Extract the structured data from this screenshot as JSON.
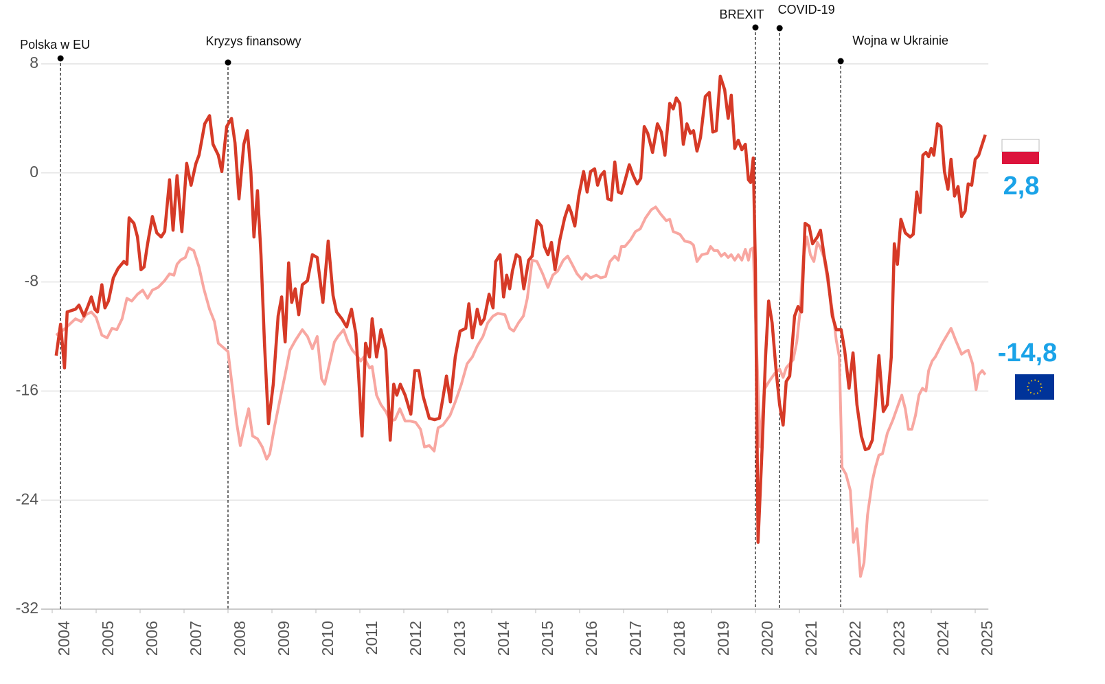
{
  "chart_data": {
    "type": "line",
    "xlim": [
      2004,
      2025.3
    ],
    "ylim": [
      -32,
      8
    ],
    "yticks": [
      8,
      0,
      -8,
      -16,
      -24,
      -32
    ],
    "xticks": [
      2004,
      2005,
      2006,
      2007,
      2008,
      2009,
      2010,
      2011,
      2012,
      2013,
      2014,
      2015,
      2016,
      2017,
      2018,
      2019,
      2020,
      2021,
      2022,
      2023,
      2024,
      2025
    ],
    "grid": true,
    "annotations": [
      {
        "x": 2004.19,
        "label": "Polska w EU"
      },
      {
        "x": 2008.0,
        "label": "Kryzys finansowy"
      },
      {
        "x": 2020.0,
        "label": "BREXIT"
      },
      {
        "x": 2020.55,
        "label": "COVID-19"
      },
      {
        "x": 2021.94,
        "label": "Wojna w Ukrainie"
      }
    ],
    "series": [
      {
        "color": "#d63a27",
        "end_label": "2,8",
        "x": [
          2004.09,
          2004.19,
          2004.28,
          2004.34,
          2004.53,
          2004.61,
          2004.72,
          2004.81,
          2004.89,
          2004.97,
          2005.03,
          2005.13,
          2005.2,
          2005.28,
          2005.39,
          2005.5,
          2005.63,
          2005.7,
          2005.75,
          2005.86,
          2005.94,
          2006.02,
          2006.09,
          2006.17,
          2006.28,
          2006.38,
          2006.48,
          2006.56,
          2006.67,
          2006.75,
          2006.84,
          2006.95,
          2007.06,
          2007.16,
          2007.27,
          2007.34,
          2007.47,
          2007.58,
          2007.66,
          2007.78,
          2007.86,
          2007.97,
          2008.08,
          2008.16,
          2008.25,
          2008.36,
          2008.44,
          2008.52,
          2008.59,
          2008.67,
          2008.75,
          2008.83,
          2008.92,
          2009.03,
          2009.14,
          2009.22,
          2009.3,
          2009.38,
          2009.45,
          2009.53,
          2009.61,
          2009.69,
          2009.81,
          2009.92,
          2010.03,
          2010.16,
          2010.28,
          2010.39,
          2010.47,
          2010.59,
          2010.7,
          2010.81,
          2010.91,
          2010.97,
          2011.05,
          2011.13,
          2011.22,
          2011.28,
          2011.38,
          2011.48,
          2011.59,
          2011.69,
          2011.77,
          2011.84,
          2011.92,
          2012.03,
          2012.16,
          2012.25,
          2012.34,
          2012.44,
          2012.58,
          2012.7,
          2012.81,
          2012.89,
          2012.97,
          2013.06,
          2013.17,
          2013.28,
          2013.41,
          2013.48,
          2013.56,
          2013.67,
          2013.75,
          2013.83,
          2013.94,
          2014.03,
          2014.09,
          2014.19,
          2014.27,
          2014.34,
          2014.41,
          2014.47,
          2014.56,
          2014.64,
          2014.73,
          2014.84,
          2014.92,
          2015.03,
          2015.13,
          2015.2,
          2015.28,
          2015.36,
          2015.44,
          2015.55,
          2015.66,
          2015.75,
          2015.81,
          2015.89,
          2015.98,
          2016.09,
          2016.17,
          2016.25,
          2016.34,
          2016.41,
          2016.48,
          2016.56,
          2016.64,
          2016.72,
          2016.8,
          2016.88,
          2016.95,
          2017.03,
          2017.13,
          2017.22,
          2017.31,
          2017.39,
          2017.47,
          2017.55,
          2017.66,
          2017.77,
          2017.86,
          2017.94,
          2018.05,
          2018.13,
          2018.2,
          2018.28,
          2018.36,
          2018.44,
          2018.52,
          2018.59,
          2018.67,
          2018.75,
          2018.86,
          2018.95,
          2019.03,
          2019.11,
          2019.2,
          2019.3,
          2019.38,
          2019.45,
          2019.53,
          2019.61,
          2019.69,
          2019.77,
          2019.84,
          2019.89,
          2019.95,
          2020.0,
          2020.06,
          2020.16,
          2020.23,
          2020.3,
          2020.38,
          2020.47,
          2020.55,
          2020.63,
          2020.7,
          2020.78,
          2020.89,
          2020.97,
          2021.05,
          2021.13,
          2021.22,
          2021.3,
          2021.41,
          2021.48,
          2021.56,
          2021.64,
          2021.75,
          2021.84,
          2021.95,
          2022.03,
          2022.13,
          2022.22,
          2022.31,
          2022.41,
          2022.5,
          2022.58,
          2022.66,
          2022.73,
          2022.81,
          2022.91,
          2023.0,
          2023.09,
          2023.16,
          2023.23,
          2023.31,
          2023.41,
          2023.52,
          2023.59,
          2023.67,
          2023.75,
          2023.81,
          2023.88,
          2023.94,
          2024.0,
          2024.06,
          2024.14,
          2024.22,
          2024.3,
          2024.38,
          2024.45,
          2024.53,
          2024.61,
          2024.69,
          2024.77,
          2024.84,
          2024.92,
          2025.0,
          2025.08,
          2025.16,
          2025.23
        ],
        "values": [
          -13.4,
          -11.1,
          -14.3,
          -10.2,
          -10.0,
          -9.7,
          -10.5,
          -9.8,
          -9.1,
          -10.0,
          -10.2,
          -8.2,
          -9.9,
          -9.4,
          -7.7,
          -7.0,
          -6.5,
          -6.7,
          -3.3,
          -3.7,
          -4.7,
          -7.1,
          -6.9,
          -5.2,
          -3.2,
          -4.4,
          -4.7,
          -4.3,
          -0.5,
          -4.2,
          -0.2,
          -4.3,
          0.7,
          -0.9,
          0.7,
          1.3,
          3.6,
          4.2,
          2.1,
          1.3,
          0.1,
          3.4,
          4.0,
          2.2,
          -1.9,
          2.1,
          3.1,
          0.1,
          -4.7,
          -1.3,
          -6.0,
          -12.5,
          -18.4,
          -15.5,
          -10.5,
          -9.1,
          -12.4,
          -6.6,
          -9.5,
          -8.5,
          -10.4,
          -8.2,
          -7.9,
          -6.0,
          -6.2,
          -9.5,
          -5.0,
          -9.0,
          -10.2,
          -10.7,
          -11.3,
          -10.0,
          -11.8,
          -14.8,
          -19.3,
          -12.5,
          -13.5,
          -10.7,
          -13.5,
          -11.5,
          -13.0,
          -19.6,
          -15.5,
          -16.3,
          -15.5,
          -16.3,
          -17.7,
          -14.5,
          -14.5,
          -16.4,
          -18.0,
          -18.1,
          -18.0,
          -16.5,
          -14.9,
          -16.8,
          -13.5,
          -11.6,
          -11.4,
          -9.6,
          -12.1,
          -10.0,
          -11.1,
          -10.7,
          -8.9,
          -9.9,
          -6.5,
          -6.0,
          -9.1,
          -7.5,
          -8.5,
          -7.2,
          -6.0,
          -6.2,
          -8.5,
          -6.4,
          -6.1,
          -3.5,
          -3.9,
          -5.4,
          -6.0,
          -5.1,
          -7.1,
          -4.9,
          -3.3,
          -2.4,
          -2.9,
          -3.9,
          -1.7,
          0.1,
          -1.4,
          0.1,
          0.3,
          -0.9,
          -0.2,
          0.1,
          -1.9,
          -2.0,
          0.8,
          -1.4,
          -1.5,
          -0.6,
          0.6,
          -0.2,
          -0.8,
          -0.4,
          3.4,
          2.9,
          1.5,
          3.6,
          3.0,
          1.3,
          5.1,
          4.7,
          5.5,
          5.1,
          2.1,
          3.6,
          2.9,
          3.1,
          1.6,
          2.6,
          5.6,
          5.9,
          3.0,
          3.1,
          7.1,
          6.1,
          4.0,
          5.7,
          1.8,
          2.4,
          1.7,
          2.1,
          -0.5,
          -0.7,
          1.1,
          -7.0,
          -27.1,
          -19.6,
          -13.5,
          -9.4,
          -11.0,
          -14.5,
          -17.0,
          -18.5,
          -15.3,
          -14.9,
          -10.5,
          -9.8,
          -10.2,
          -3.7,
          -3.9,
          -5.2,
          -4.7,
          -4.2,
          -6.0,
          -7.5,
          -10.5,
          -11.5,
          -11.5,
          -13.0,
          -15.8,
          -13.2,
          -17.0,
          -19.3,
          -20.3,
          -20.2,
          -19.6,
          -17.0,
          -13.4,
          -17.5,
          -17.0,
          -13.5,
          -5.2,
          -6.7,
          -3.4,
          -4.4,
          -4.7,
          -4.5,
          -1.4,
          -2.9,
          1.3,
          1.5,
          1.2,
          1.8,
          1.3,
          3.6,
          3.4,
          0.1,
          -1.2,
          1.0,
          -1.7,
          -1.0,
          -3.2,
          -2.8,
          -0.8,
          -0.9,
          1.0,
          1.3,
          2.1,
          2.8
        ]
      },
      {
        "color": "#f8a7a1",
        "end_label": "-14,8",
        "x": [
          2004.09,
          2004.3,
          2004.53,
          2004.66,
          2004.77,
          2004.89,
          2005.0,
          2005.13,
          2005.25,
          2005.36,
          2005.47,
          2005.59,
          2005.7,
          2005.81,
          2005.94,
          2006.06,
          2006.17,
          2006.28,
          2006.41,
          2006.56,
          2006.67,
          2006.77,
          2006.84,
          2006.92,
          2007.03,
          2007.11,
          2007.22,
          2007.34,
          2007.45,
          2007.58,
          2007.69,
          2007.78,
          2007.89,
          2008.0,
          2008.09,
          2008.2,
          2008.28,
          2008.36,
          2008.47,
          2008.56,
          2008.67,
          2008.78,
          2008.88,
          2008.95,
          2009.06,
          2009.19,
          2009.3,
          2009.41,
          2009.53,
          2009.69,
          2009.81,
          2009.92,
          2010.03,
          2010.13,
          2010.2,
          2010.31,
          2010.42,
          2010.5,
          2010.63,
          2010.73,
          2010.83,
          2010.91,
          2011.02,
          2011.09,
          2011.22,
          2011.28,
          2011.38,
          2011.48,
          2011.59,
          2011.69,
          2011.8,
          2011.91,
          2012.03,
          2012.14,
          2012.27,
          2012.38,
          2012.47,
          2012.58,
          2012.69,
          2012.78,
          2012.89,
          2013.05,
          2013.17,
          2013.31,
          2013.44,
          2013.56,
          2013.67,
          2013.8,
          2013.91,
          2014.03,
          2014.14,
          2014.3,
          2014.41,
          2014.5,
          2014.61,
          2014.72,
          2014.81,
          2014.92,
          2015.03,
          2015.16,
          2015.28,
          2015.39,
          2015.5,
          2015.63,
          2015.73,
          2015.83,
          2015.94,
          2016.05,
          2016.14,
          2016.25,
          2016.38,
          2016.48,
          2016.59,
          2016.69,
          2016.8,
          2016.88,
          2016.95,
          2017.03,
          2017.16,
          2017.27,
          2017.38,
          2017.5,
          2017.63,
          2017.73,
          2017.84,
          2017.97,
          2018.05,
          2018.13,
          2018.28,
          2018.39,
          2018.52,
          2018.59,
          2018.67,
          2018.78,
          2018.91,
          2018.98,
          2019.06,
          2019.14,
          2019.22,
          2019.3,
          2019.38,
          2019.45,
          2019.53,
          2019.61,
          2019.69,
          2019.77,
          2019.84,
          2019.89,
          2019.95,
          2020.0,
          2020.11,
          2020.2,
          2020.31,
          2020.44,
          2020.55,
          2020.63,
          2020.7,
          2020.78,
          2020.86,
          2020.94,
          2021.02,
          2021.09,
          2021.17,
          2021.25,
          2021.33,
          2021.41,
          2021.48,
          2021.56,
          2021.67,
          2021.77,
          2021.84,
          2021.91,
          2021.97,
          2022.06,
          2022.16,
          2022.23,
          2022.31,
          2022.39,
          2022.47,
          2022.55,
          2022.66,
          2022.73,
          2022.81,
          2022.89,
          2023.0,
          2023.13,
          2023.25,
          2023.33,
          2023.41,
          2023.48,
          2023.56,
          2023.64,
          2023.72,
          2023.8,
          2023.88,
          2023.94,
          2024.02,
          2024.09,
          2024.17,
          2024.25,
          2024.34,
          2024.45,
          2024.56,
          2024.69,
          2024.78,
          2024.84,
          2024.94,
          2025.02,
          2025.08,
          2025.16,
          2025.23
        ],
        "values": [
          -11.9,
          -11.4,
          -10.7,
          -10.9,
          -10.4,
          -10.2,
          -10.6,
          -11.9,
          -12.1,
          -11.4,
          -11.5,
          -10.7,
          -9.2,
          -9.4,
          -8.9,
          -8.6,
          -9.2,
          -8.6,
          -8.4,
          -7.9,
          -7.4,
          -7.5,
          -6.7,
          -6.4,
          -6.2,
          -5.5,
          -5.7,
          -6.9,
          -8.5,
          -10.0,
          -10.9,
          -12.5,
          -12.8,
          -13.1,
          -15.5,
          -18.4,
          -20.0,
          -18.8,
          -17.3,
          -19.3,
          -19.5,
          -20.1,
          -21.0,
          -20.6,
          -18.6,
          -16.5,
          -14.8,
          -13.0,
          -12.3,
          -11.5,
          -12.0,
          -12.9,
          -12.0,
          -15.1,
          -15.5,
          -14.0,
          -12.4,
          -12.0,
          -11.5,
          -12.4,
          -13.0,
          -13.3,
          -13.8,
          -13.5,
          -14.3,
          -14.2,
          -16.3,
          -17.0,
          -17.5,
          -18.2,
          -18.1,
          -17.3,
          -18.2,
          -18.2,
          -18.3,
          -18.8,
          -20.1,
          -20.0,
          -20.4,
          -18.7,
          -18.5,
          -17.8,
          -16.8,
          -15.5,
          -14.0,
          -13.5,
          -12.7,
          -12.0,
          -11.0,
          -10.5,
          -10.3,
          -10.4,
          -11.4,
          -11.6,
          -11.0,
          -10.5,
          -9.2,
          -6.4,
          -6.5,
          -7.4,
          -8.4,
          -7.5,
          -7.2,
          -6.4,
          -6.1,
          -6.7,
          -7.4,
          -7.8,
          -7.4,
          -7.7,
          -7.5,
          -7.7,
          -7.6,
          -6.5,
          -6.1,
          -6.4,
          -5.4,
          -5.4,
          -4.9,
          -4.3,
          -4.1,
          -3.3,
          -2.7,
          -2.5,
          -3.0,
          -3.5,
          -3.4,
          -4.3,
          -4.5,
          -5.0,
          -5.1,
          -5.3,
          -6.5,
          -6.0,
          -5.9,
          -5.4,
          -5.7,
          -5.7,
          -6.1,
          -5.9,
          -6.2,
          -6.0,
          -6.4,
          -6.0,
          -6.4,
          -5.6,
          -6.4,
          -5.6,
          -5.5,
          -10.5,
          -20.1,
          -15.9,
          -15.3,
          -14.7,
          -14.4,
          -15.0,
          -14.3,
          -14.0,
          -13.7,
          -12.4,
          -10.0,
          -6.2,
          -4.7,
          -6.0,
          -6.5,
          -5.1,
          -5.5,
          -6.2,
          -8.5,
          -10.5,
          -12.3,
          -13.5,
          -21.6,
          -22.1,
          -23.3,
          -27.1,
          -26.1,
          -29.6,
          -28.6,
          -25.1,
          -22.6,
          -21.6,
          -20.7,
          -20.6,
          -19.1,
          -18.1,
          -17.0,
          -16.3,
          -17.3,
          -18.8,
          -18.8,
          -17.8,
          -16.3,
          -15.8,
          -16.0,
          -14.5,
          -13.8,
          -13.5,
          -13.0,
          -12.5,
          -12.0,
          -11.4,
          -12.3,
          -13.3,
          -13.1,
          -13.0,
          -14.0,
          -15.9,
          -14.8,
          -14.5,
          -14.8
        ]
      }
    ]
  }
}
